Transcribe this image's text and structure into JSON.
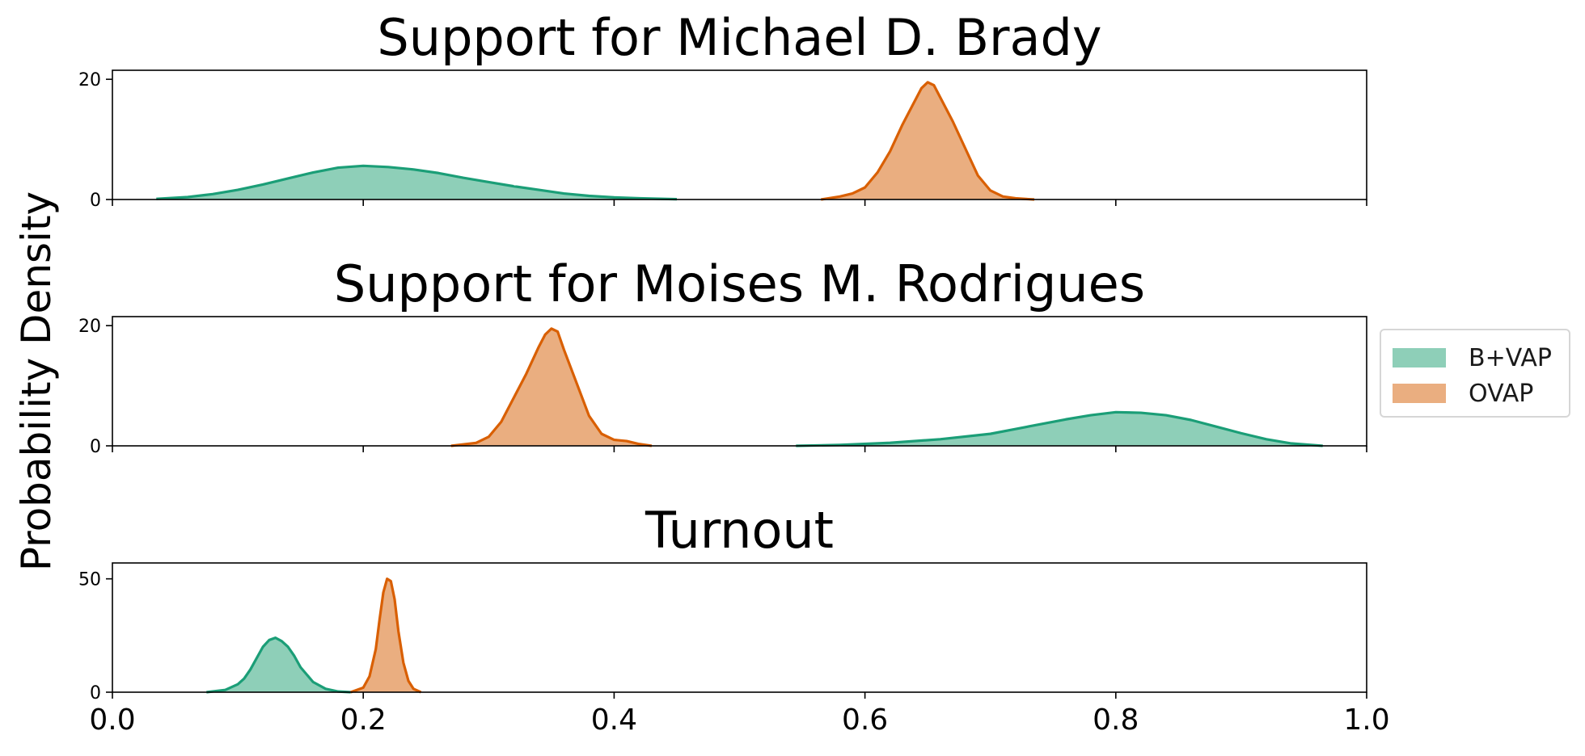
{
  "figure": {
    "ylabel": "Probability Density",
    "x_ticks": [
      "0.0",
      "0.2",
      "0.4",
      "0.6",
      "0.8",
      "1.0"
    ]
  },
  "legend": {
    "entries": [
      {
        "label": "B+VAP",
        "color": "#8ecfb8"
      },
      {
        "label": "OVAP",
        "color": "#eaae80"
      }
    ]
  },
  "colors": {
    "bvap_fill": "#8ecfb8",
    "bvap_line": "#1b9e77",
    "ovap_fill": "#eaae80",
    "ovap_line": "#d95f02"
  },
  "chart_data": [
    {
      "type": "area",
      "title": "Support for Michael D. Brady",
      "xlim": [
        0,
        1
      ],
      "ylim": [
        0,
        21.5
      ],
      "y_ticks": [
        0,
        20
      ],
      "series": [
        {
          "name": "B+VAP",
          "x": [
            0.035,
            0.06,
            0.08,
            0.1,
            0.12,
            0.14,
            0.16,
            0.18,
            0.2,
            0.22,
            0.24,
            0.26,
            0.28,
            0.3,
            0.32,
            0.34,
            0.36,
            0.38,
            0.4,
            0.42,
            0.45
          ],
          "y": [
            0.1,
            0.4,
            0.9,
            1.6,
            2.5,
            3.5,
            4.5,
            5.3,
            5.6,
            5.4,
            5.0,
            4.4,
            3.6,
            2.9,
            2.2,
            1.6,
            1.0,
            0.6,
            0.35,
            0.2,
            0.05
          ]
        },
        {
          "name": "OVAP",
          "x": [
            0.565,
            0.58,
            0.59,
            0.6,
            0.61,
            0.62,
            0.63,
            0.64,
            0.645,
            0.65,
            0.655,
            0.66,
            0.67,
            0.68,
            0.69,
            0.7,
            0.71,
            0.72,
            0.735
          ],
          "y": [
            0.0,
            0.5,
            1.0,
            2.0,
            4.5,
            8.0,
            12.5,
            16.5,
            18.5,
            19.5,
            19.0,
            17.0,
            13.0,
            8.5,
            4.0,
            1.5,
            0.5,
            0.2,
            0.0
          ]
        }
      ]
    },
    {
      "type": "area",
      "title": "Support for Moises M. Rodrigues",
      "xlim": [
        0,
        1
      ],
      "ylim": [
        0,
        21.5
      ],
      "y_ticks": [
        0,
        20
      ],
      "series": [
        {
          "name": "B+VAP",
          "x": [
            0.545,
            0.58,
            0.62,
            0.66,
            0.7,
            0.72,
            0.74,
            0.76,
            0.78,
            0.8,
            0.82,
            0.84,
            0.86,
            0.88,
            0.9,
            0.92,
            0.94,
            0.965
          ],
          "y": [
            0.0,
            0.15,
            0.5,
            1.1,
            2.0,
            2.8,
            3.6,
            4.4,
            5.1,
            5.6,
            5.5,
            5.1,
            4.3,
            3.2,
            2.1,
            1.1,
            0.4,
            0.0
          ]
        },
        {
          "name": "OVAP",
          "x": [
            0.27,
            0.29,
            0.3,
            0.31,
            0.32,
            0.33,
            0.34,
            0.345,
            0.35,
            0.355,
            0.36,
            0.37,
            0.38,
            0.39,
            0.4,
            0.41,
            0.42,
            0.43
          ],
          "y": [
            0.0,
            0.5,
            1.5,
            4.0,
            8.0,
            12.0,
            16.5,
            18.5,
            19.5,
            19.0,
            16.0,
            10.5,
            5.0,
            2.0,
            1.0,
            0.8,
            0.3,
            0.0
          ]
        }
      ]
    },
    {
      "type": "area",
      "title": "Turnout",
      "xlim": [
        0,
        1
      ],
      "ylim": [
        0,
        57
      ],
      "y_ticks": [
        0,
        50
      ],
      "series": [
        {
          "name": "B+VAP",
          "x": [
            0.075,
            0.09,
            0.1,
            0.105,
            0.11,
            0.115,
            0.12,
            0.125,
            0.13,
            0.135,
            0.14,
            0.145,
            0.15,
            0.16,
            0.17,
            0.18,
            0.19
          ],
          "y": [
            0.0,
            1.0,
            3.5,
            6.0,
            10.0,
            15.0,
            20.0,
            23.0,
            24.0,
            22.5,
            20.0,
            16.0,
            11.0,
            4.5,
            1.5,
            0.3,
            0.0
          ]
        },
        {
          "name": "OVAP",
          "x": [
            0.19,
            0.2,
            0.205,
            0.21,
            0.213,
            0.216,
            0.219,
            0.222,
            0.225,
            0.228,
            0.232,
            0.236,
            0.24,
            0.246
          ],
          "y": [
            0.0,
            2.0,
            7.0,
            19.0,
            32.0,
            44.0,
            50.0,
            49.0,
            41.0,
            27.0,
            13.0,
            5.0,
            1.5,
            0.0
          ]
        }
      ]
    }
  ]
}
